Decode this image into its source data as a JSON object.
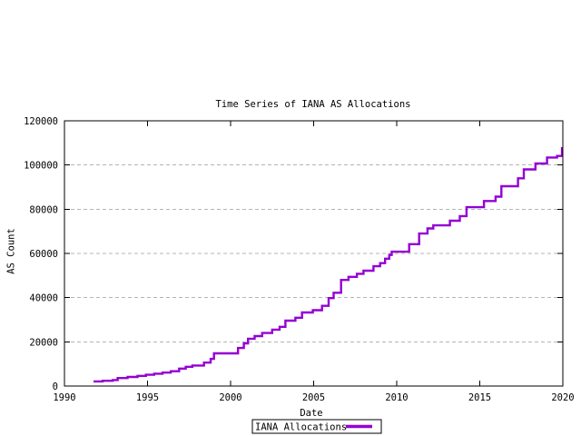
{
  "page": {
    "background": "#ffffff"
  },
  "chart": {
    "title": "Time Series of IANA AS Allocations",
    "xlabel": "Date",
    "ylabel": "AS Count",
    "legend_label": "IANA Allocations",
    "colors": {
      "line": "#9400D3",
      "grid": "#b4b4b4",
      "axis": "#000000",
      "text": "#000000",
      "background": "#ffffff"
    }
  },
  "chart_data": {
    "type": "line",
    "line_style": "steps",
    "title": "Time Series of IANA AS Allocations",
    "xlabel": "Date",
    "ylabel": "AS Count",
    "xlim": [
      1990,
      2020
    ],
    "ylim": [
      0,
      120000
    ],
    "xticks": [
      1990,
      1995,
      2000,
      2005,
      2010,
      2015,
      2020
    ],
    "yticks": [
      0,
      20000,
      40000,
      60000,
      80000,
      100000,
      120000
    ],
    "grid": "horizontal dashed gridlines at y ticks",
    "legend": {
      "position": "centered below x-axis label, boxed",
      "entries": [
        "IANA Allocations"
      ]
    },
    "series": [
      {
        "name": "IANA Allocations",
        "color": "#9400D3",
        "points": [
          [
            1991.75,
            2100
          ],
          [
            1992.3,
            2400
          ],
          [
            1992.9,
            2700
          ],
          [
            1993.2,
            3600
          ],
          [
            1993.8,
            4100
          ],
          [
            1994.4,
            4600
          ],
          [
            1994.9,
            5100
          ],
          [
            1995.4,
            5600
          ],
          [
            1995.9,
            6100
          ],
          [
            1996.4,
            6700
          ],
          [
            1996.9,
            7900
          ],
          [
            1997.3,
            8700
          ],
          [
            1997.7,
            9300
          ],
          [
            1998.4,
            10600
          ],
          [
            1998.8,
            12300
          ],
          [
            1999.0,
            14800
          ],
          [
            2000.45,
            17200
          ],
          [
            2000.8,
            19300
          ],
          [
            2001.05,
            21400
          ],
          [
            2001.45,
            22600
          ],
          [
            2001.9,
            24000
          ],
          [
            2002.5,
            25500
          ],
          [
            2002.95,
            26800
          ],
          [
            2003.3,
            29600
          ],
          [
            2003.9,
            30900
          ],
          [
            2004.3,
            33300
          ],
          [
            2004.95,
            34300
          ],
          [
            2005.5,
            36300
          ],
          [
            2005.9,
            39800
          ],
          [
            2006.2,
            42200
          ],
          [
            2006.65,
            48000
          ],
          [
            2007.1,
            49400
          ],
          [
            2007.6,
            50800
          ],
          [
            2008.0,
            52200
          ],
          [
            2008.6,
            54200
          ],
          [
            2009.0,
            55600
          ],
          [
            2009.3,
            57600
          ],
          [
            2009.55,
            59300
          ],
          [
            2009.7,
            60800
          ],
          [
            2010.75,
            64200
          ],
          [
            2011.35,
            69000
          ],
          [
            2011.85,
            71300
          ],
          [
            2012.2,
            72700
          ],
          [
            2013.2,
            74800
          ],
          [
            2013.8,
            76900
          ],
          [
            2014.2,
            80900
          ],
          [
            2015.25,
            83700
          ],
          [
            2015.95,
            85700
          ],
          [
            2016.3,
            90400
          ],
          [
            2017.3,
            94000
          ],
          [
            2017.65,
            98000
          ],
          [
            2018.35,
            100700
          ],
          [
            2019.05,
            103400
          ],
          [
            2019.65,
            104100
          ],
          [
            2019.95,
            107600
          ],
          [
            2020.1,
            108300
          ]
        ]
      }
    ]
  }
}
